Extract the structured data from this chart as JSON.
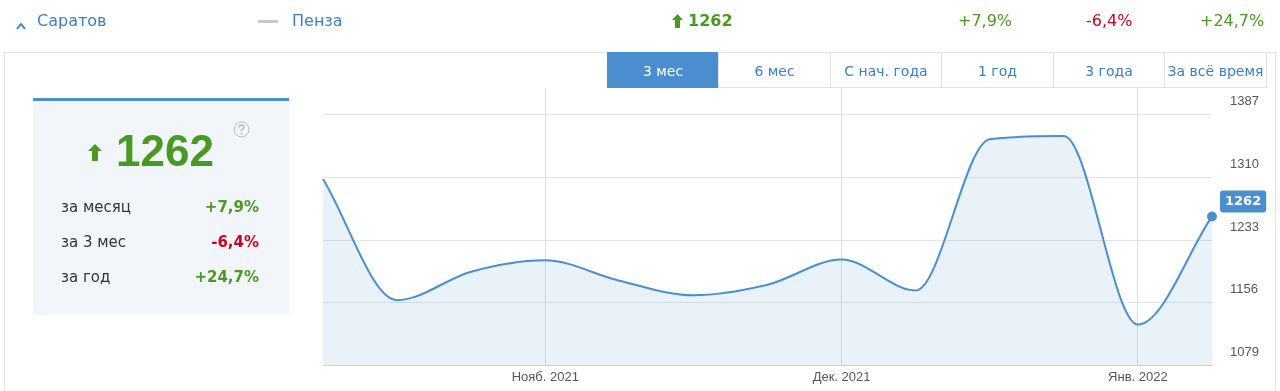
{
  "chart_data": {
    "type": "area",
    "categories": [
      null,
      null,
      null,
      "Нояб. 2021",
      null,
      null,
      null,
      "Дек. 2021",
      null,
      null,
      null,
      "Янв. 2022",
      null
    ],
    "series": [
      {
        "color": "#4a8ecf",
        "values": [
          1308,
          1159,
          1194,
          1208,
          1183,
          1165,
          1178,
          1209,
          1171,
          1357,
          1361,
          1129,
          1262
        ],
        "value_labels": [
          null,
          null,
          null,
          null,
          null,
          null,
          null,
          null,
          null,
          null,
          null,
          null,
          "1262"
        ]
      }
    ],
    "ylim": [
      1079,
      1420
    ],
    "yticks": [
      1079,
      1156,
      1233,
      1310,
      1387
    ],
    "grid": true,
    "annotations": [
      "Саратов",
      "Пенза",
      "1262",
      "+7,9%",
      "-6,4%",
      "+24,7%",
      "3 мес",
      "6 мес",
      "С нач. года",
      "1 год",
      "3 года",
      "За всё время",
      "1262",
      "за месяц",
      "+7,9%",
      "за 3 мес",
      "-6,4%",
      "за год",
      "+24,7%"
    ]
  }
}
